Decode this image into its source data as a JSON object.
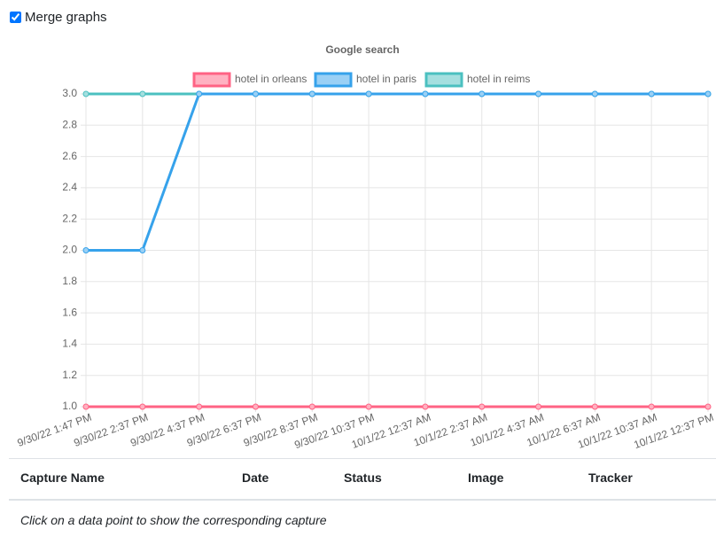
{
  "controls": {
    "merge_label": "Merge graphs"
  },
  "chart_data": {
    "type": "line",
    "title": "Google search",
    "categories": [
      "9/30/22 1:47 PM",
      "9/30/22 2:37 PM",
      "9/30/22 4:37 PM",
      "9/30/22 6:37 PM",
      "9/30/22 8:37 PM",
      "9/30/22 10:37 PM",
      "10/1/22 12:37 AM",
      "10/1/22 2:37 AM",
      "10/1/22 4:37 AM",
      "10/1/22 6:37 AM",
      "10/1/22 10:37 AM",
      "10/1/22 12:37 PM"
    ],
    "series": [
      {
        "name": "hotel in orleans",
        "color": "#ff6384",
        "fill": "#ffb1c1",
        "values": [
          1,
          1,
          1,
          1,
          1,
          1,
          1,
          1,
          1,
          1,
          1,
          1
        ]
      },
      {
        "name": "hotel in paris",
        "color": "#36a2eb",
        "fill": "#9ad0f5",
        "values": [
          2,
          2,
          3,
          3,
          3,
          3,
          3,
          3,
          3,
          3,
          3,
          3
        ]
      },
      {
        "name": "hotel in reims",
        "color": "#4bc0c0",
        "fill": "#a5dfdf",
        "values": [
          3,
          3,
          3,
          3,
          3,
          3,
          3,
          3,
          3,
          3,
          3,
          3
        ]
      }
    ],
    "ylim": [
      1,
      3
    ],
    "yticks": [
      {
        "value": 1,
        "label": "1.0"
      },
      1.2,
      1.4,
      1.6,
      1.8,
      {
        "value": 2,
        "label": "2.0"
      },
      2.2,
      2.4,
      2.6,
      2.8,
      {
        "value": 3,
        "label": "3.0"
      }
    ],
    "grid": true,
    "legend": "top"
  },
  "table": {
    "headers": [
      "Capture Name",
      "Date",
      "Status",
      "Image",
      "Tracker"
    ],
    "hint": "Click on a data point to show the corresponding capture"
  }
}
